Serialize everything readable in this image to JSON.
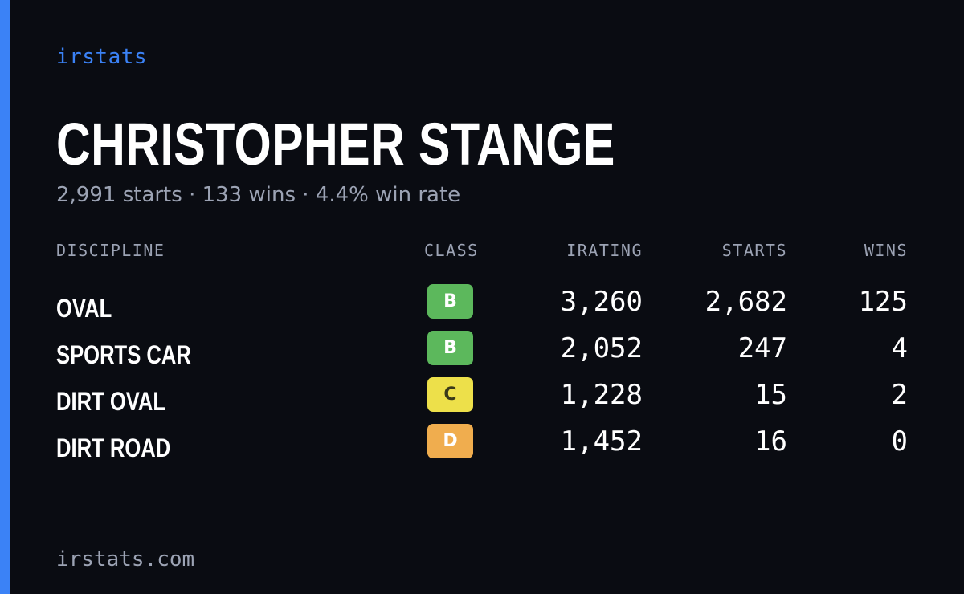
{
  "brand": "irstats",
  "driver": {
    "name": "CHRISTOPHER STANGE",
    "summary": "2,991 starts · 133 wins · 4.4% win rate"
  },
  "table": {
    "headers": {
      "discipline": "DISCIPLINE",
      "class": "CLASS",
      "irating": "IRATING",
      "starts": "STARTS",
      "wins": "WINS"
    },
    "rows": [
      {
        "discipline": "OVAL",
        "class": "B",
        "class_color": "#5cb85c",
        "class_text_color": "#ffffff",
        "irating": "3,260",
        "starts": "2,682",
        "wins": "125"
      },
      {
        "discipline": "SPORTS CAR",
        "class": "B",
        "class_color": "#5cb85c",
        "class_text_color": "#ffffff",
        "irating": "2,052",
        "starts": "247",
        "wins": "4"
      },
      {
        "discipline": "DIRT OVAL",
        "class": "C",
        "class_color": "#ede04a",
        "class_text_color": "#3a3a1a",
        "irating": "1,228",
        "starts": "15",
        "wins": "2"
      },
      {
        "discipline": "DIRT ROAD",
        "class": "D",
        "class_color": "#f0ad4e",
        "class_text_color": "#ffffff",
        "irating": "1,452",
        "starts": "16",
        "wins": "0"
      }
    ]
  },
  "footer": "irstats.com",
  "colors": {
    "background": "#0a0c12",
    "accent": "#3b82f6",
    "muted_text": "#9ca3b4"
  }
}
